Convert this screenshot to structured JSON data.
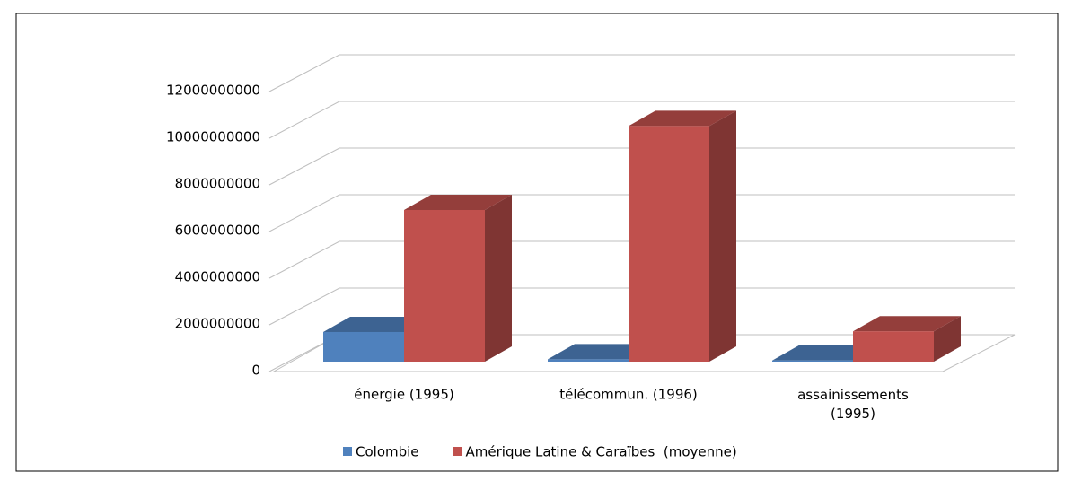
{
  "chart_data": {
    "type": "bar3d",
    "categories": [
      "énergie (1995)",
      "télécommun. (1996)",
      "assainissements (1995)"
    ],
    "series": [
      {
        "name": "Colombie",
        "color": "#4f81bd",
        "values": [
          1270000000,
          100000000,
          50000000
        ]
      },
      {
        "name": "Amérique Latine & Caraïbes  (moyenne)",
        "color": "#c0504d",
        "values": [
          6500000000,
          10100000000,
          1300000000
        ]
      }
    ],
    "ylim": [
      0,
      12000000000
    ],
    "yticks": [
      0,
      2000000000,
      4000000000,
      6000000000,
      8000000000,
      10000000000,
      12000000000
    ],
    "grid": true,
    "legend": "bottom"
  }
}
